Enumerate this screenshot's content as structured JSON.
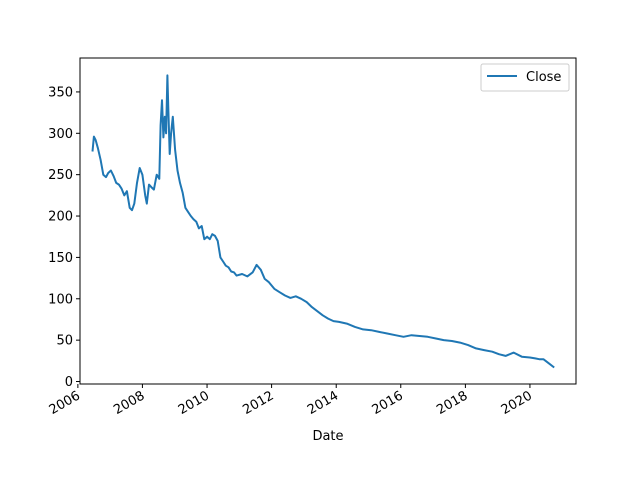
{
  "chart_data": {
    "type": "line",
    "title": "",
    "xlabel": "Date",
    "ylabel": "",
    "x_ticks": [
      "2006",
      "2008",
      "2010",
      "2012",
      "2014",
      "2016",
      "2018",
      "2020"
    ],
    "y_ticks": [
      "0",
      "50",
      "100",
      "150",
      "200",
      "250",
      "300",
      "350"
    ],
    "xlim": [
      "2006-01-25",
      "2021-06-05"
    ],
    "ylim": [
      -3,
      391
    ],
    "grid": false,
    "legend": {
      "position": "top-right",
      "entries": [
        "Close"
      ]
    },
    "colors": {
      "series": "#1f77b4",
      "axes": "#000000",
      "legend_border": "#cccccc"
    },
    "series": [
      {
        "name": "Close",
        "x": [
          "2006-06-15",
          "2006-07-01",
          "2006-07-20",
          "2006-08-15",
          "2006-09-15",
          "2006-10-15",
          "2006-11-15",
          "2006-12-10",
          "2007-01-10",
          "2007-02-10",
          "2007-03-10",
          "2007-04-10",
          "2007-05-10",
          "2007-06-10",
          "2007-07-10",
          "2007-08-10",
          "2007-09-05",
          "2007-10-01",
          "2007-11-01",
          "2007-12-01",
          "2008-01-01",
          "2008-02-01",
          "2008-02-20",
          "2008-03-15",
          "2008-04-10",
          "2008-05-10",
          "2008-06-10",
          "2008-07-10",
          "2008-07-25",
          "2008-08-10",
          "2008-08-25",
          "2008-09-10",
          "2008-09-25",
          "2008-10-10",
          "2008-10-20",
          "2008-11-05",
          "2008-11-20",
          "2008-12-10",
          "2009-01-05",
          "2009-02-01",
          "2009-03-01",
          "2009-04-01",
          "2009-05-01",
          "2009-06-01",
          "2009-07-01",
          "2009-08-01",
          "2009-09-01",
          "2009-10-01",
          "2009-11-01",
          "2009-12-01",
          "2010-01-01",
          "2010-02-01",
          "2010-03-01",
          "2010-04-01",
          "2010-05-01",
          "2010-06-01",
          "2010-07-01",
          "2010-08-01",
          "2010-09-01",
          "2010-10-01",
          "2010-11-01",
          "2010-12-01",
          "2011-02-01",
          "2011-04-01",
          "2011-06-01",
          "2011-07-15",
          "2011-09-01",
          "2011-10-15",
          "2011-12-01",
          "2012-02-01",
          "2012-04-01",
          "2012-06-01",
          "2012-08-01",
          "2012-10-01",
          "2012-12-01",
          "2013-02-01",
          "2013-04-01",
          "2013-06-01",
          "2013-08-01",
          "2013-10-01",
          "2013-12-01",
          "2014-02-01",
          "2014-05-01",
          "2014-08-01",
          "2014-11-01",
          "2015-02-01",
          "2015-05-01",
          "2015-08-01",
          "2015-11-01",
          "2016-02-01",
          "2016-05-01",
          "2016-08-01",
          "2016-11-01",
          "2017-02-01",
          "2017-05-01",
          "2017-08-01",
          "2017-11-01",
          "2018-02-01",
          "2018-05-01",
          "2018-08-01",
          "2018-11-01",
          "2019-01-15",
          "2019-04-01",
          "2019-07-01",
          "2019-10-01",
          "2020-01-01",
          "2020-03-01",
          "2020-04-15",
          "2020-06-01",
          "2020-08-01",
          "2020-10-01"
        ],
        "y": [
          278,
          296,
          292,
          282,
          268,
          250,
          247,
          252,
          255,
          248,
          240,
          238,
          233,
          225,
          230,
          210,
          207,
          215,
          240,
          258,
          250,
          225,
          215,
          238,
          235,
          232,
          250,
          245,
          310,
          340,
          295,
          320,
          300,
          370,
          330,
          275,
          300,
          320,
          280,
          255,
          240,
          228,
          210,
          205,
          200,
          196,
          193,
          185,
          188,
          172,
          175,
          172,
          178,
          176,
          170,
          150,
          145,
          140,
          138,
          133,
          132,
          128,
          130,
          127,
          132,
          141,
          135,
          124,
          120,
          112,
          108,
          104,
          101,
          103,
          100,
          96,
          90,
          85,
          80,
          76,
          73,
          72,
          70,
          66,
          63,
          62,
          60,
          58,
          56,
          54,
          56,
          55,
          54,
          52,
          50,
          49,
          47,
          44,
          40,
          38,
          36,
          33,
          31,
          35,
          30,
          29,
          28,
          27,
          27,
          22,
          17
        ]
      }
    ]
  }
}
